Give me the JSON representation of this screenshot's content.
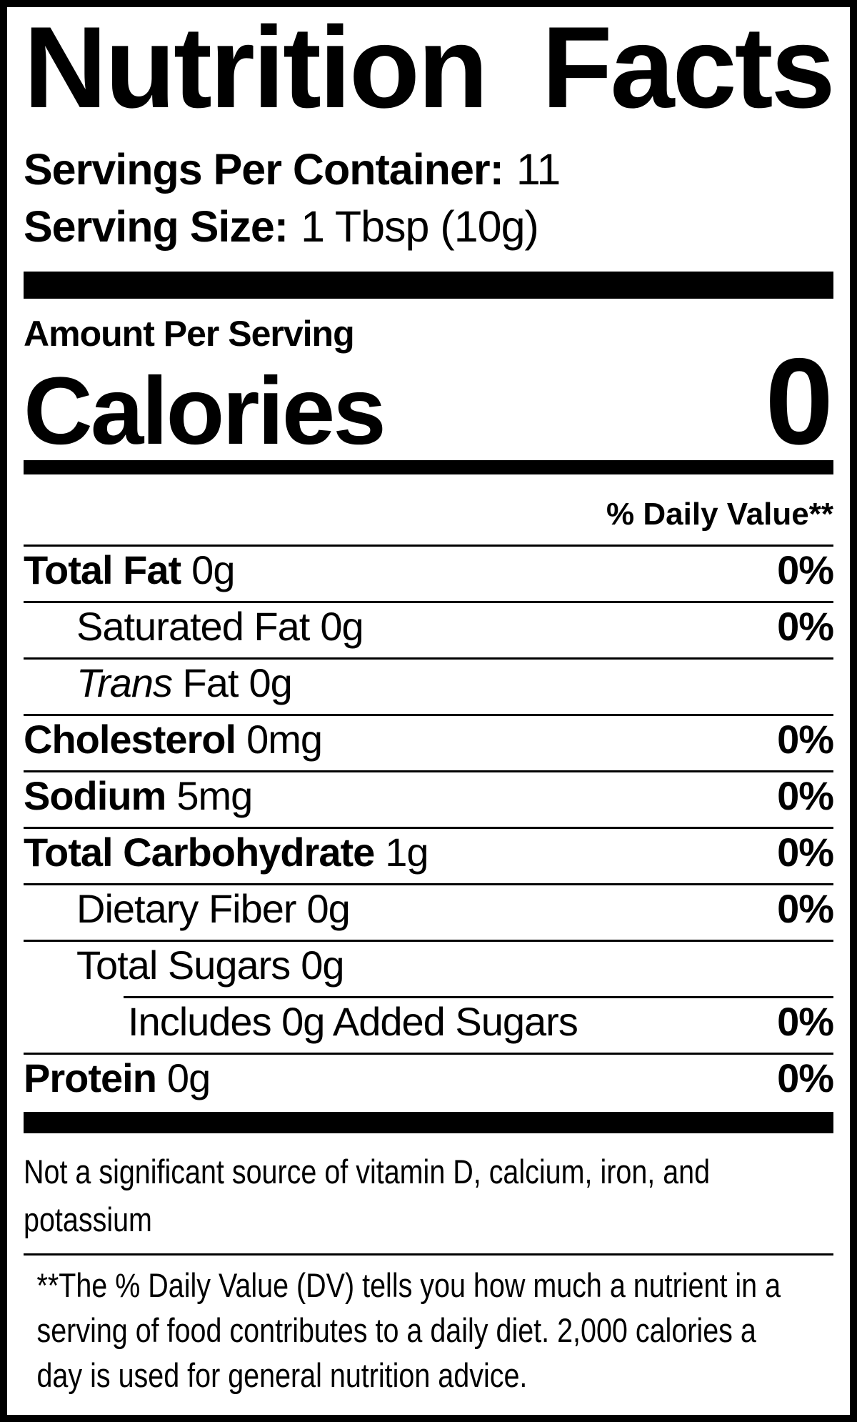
{
  "colors": {
    "text": "#000000",
    "background": "#ffffff",
    "bar": "#000000"
  },
  "label": {
    "title": "Nutrition Facts",
    "servings_per_container": {
      "label": "Servings Per Container:",
      "value": "11"
    },
    "serving_size": {
      "label": "Serving Size:",
      "value": "1 Tbsp (10g)"
    },
    "amount_per_serving": "Amount Per Serving",
    "calories": {
      "label": "Calories",
      "value": "0"
    },
    "daily_value_header": "% Daily Value**",
    "daily_value_rows": [
      {
        "name": "Total Fat",
        "amount": "0g",
        "dv": "0%",
        "bold": true,
        "indent": 0,
        "divider": "full"
      },
      {
        "name": "Saturated Fat",
        "amount": "0g",
        "dv": "0%",
        "bold": false,
        "indent": 1,
        "divider": "full"
      },
      {
        "name_italic": "Trans",
        "name": "Fat",
        "amount": "0g",
        "dv": "",
        "bold": false,
        "indent": 1,
        "divider": "full"
      },
      {
        "name": "Cholesterol",
        "amount": "0mg",
        "dv": "0%",
        "bold": true,
        "indent": 0,
        "divider": "full"
      },
      {
        "name": "Sodium",
        "amount": "5mg",
        "dv": "0%",
        "bold": true,
        "indent": 0,
        "divider": "full"
      },
      {
        "name": "Total Carbohydrate",
        "amount": "1g",
        "dv": "0%",
        "bold": true,
        "indent": 0,
        "divider": "full"
      },
      {
        "name": "Dietary Fiber",
        "amount": "0g",
        "dv": "0%",
        "bold": false,
        "indent": 1,
        "divider": "full"
      },
      {
        "name": "Total Sugars",
        "amount": "0g",
        "dv": "",
        "bold": false,
        "indent": 1,
        "divider": "full"
      },
      {
        "name": "Includes 0g Added Sugars",
        "amount": "",
        "dv": "0%",
        "bold": false,
        "indent": 2,
        "divider": "indent"
      },
      {
        "name": "Protein",
        "amount": "0g",
        "dv": "0%",
        "bold": true,
        "indent": 0,
        "divider": "full"
      }
    ],
    "not_significant_lines": [
      "Not a significant source of vitamin D, calcium, iron, and",
      "potassium"
    ],
    "footnote_lines": [
      "**The % Daily Value (DV) tells you how much a nutrient in a",
      "serving of food contributes to a daily diet. 2,000 calories a",
      "day is used for general nutrition advice."
    ]
  }
}
